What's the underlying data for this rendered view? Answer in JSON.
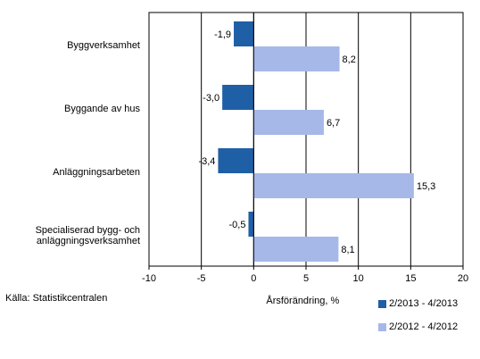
{
  "chart_data": {
    "type": "bar",
    "orientation": "horizontal",
    "categories": [
      "Byggverksamhet",
      "Byggande av hus",
      "Anläggningsarbeten",
      "Specialiserad bygg- och anläggningsverksamhet"
    ],
    "series": [
      {
        "name": "2/2013 - 4/2013",
        "values": [
          -1.9,
          -3.0,
          -3.4,
          -0.5
        ],
        "labels": [
          "-1,9",
          "-3,0",
          "-3,4",
          "-0,5"
        ],
        "color": "#1f5fa6"
      },
      {
        "name": "2/2012 - 4/2012",
        "values": [
          8.2,
          6.7,
          15.3,
          8.1
        ],
        "labels": [
          "8,2",
          "6,7",
          "15,3",
          "8,1"
        ],
        "color": "#a5b8e8"
      }
    ],
    "xlabel": "Årsförändring, %",
    "xlim": [
      -10,
      20
    ],
    "xticks": [
      -10,
      -5,
      0,
      5,
      10,
      15,
      20
    ],
    "grid": true,
    "legend_position": "bottom-right"
  },
  "source_text": "Källa: Statistikcentralen"
}
